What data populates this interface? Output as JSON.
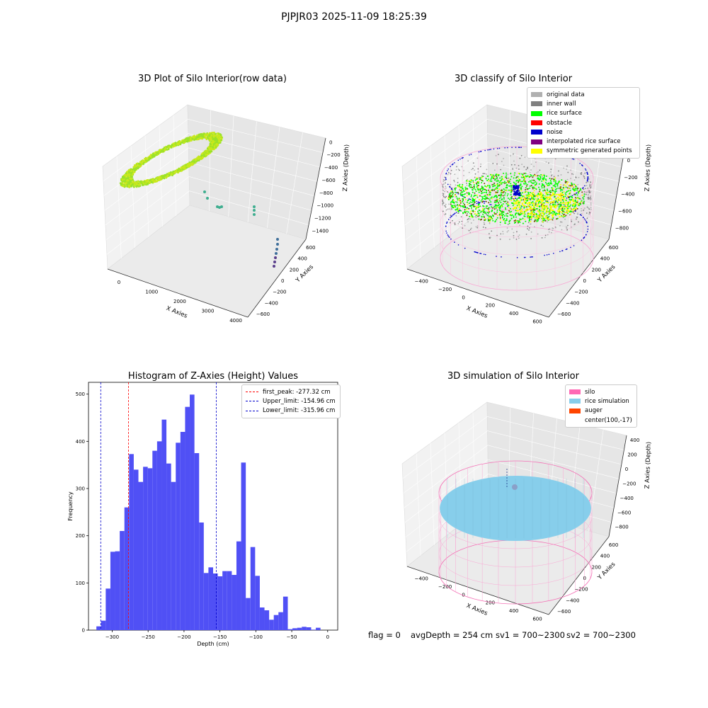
{
  "suptitle": "PJPJR03 2025-11-09 18:25:39",
  "footer": {
    "flag": "flag = 0",
    "avg": "avgDepth = 254 cm",
    "sv1": "sv1 = 700~2300",
    "sv2": "sv2 = 700~2300"
  },
  "colors": {
    "original": "#b0b0b0",
    "inner_wall": "#808080",
    "rice_surface": "#00ff00",
    "obstacle": "#ff0000",
    "noise": "#0000cc",
    "interpolated": "#800080",
    "symmetric": "#ffff00",
    "silo": "#ff69b4",
    "rice_sim": "#87ceeb",
    "auger": "#ff4500",
    "hist_bar": "#5050f5"
  },
  "chart_data": [
    {
      "type": "scatter3d",
      "title": "3D Plot of Silo Interior(row data)",
      "xlabel": "X Axies",
      "ylabel": "Y Axies",
      "zlabel": "Z Axies (Depth)",
      "x_ticks": [
        "0",
        "1000",
        "2000",
        "3000",
        "4000"
      ],
      "y_ticks": [
        "−600",
        "−400",
        "−200",
        "0",
        "200",
        "400",
        "600"
      ],
      "z_ticks": [
        "0",
        "−200",
        "−400",
        "−600",
        "−800",
        "−1000",
        "−1200",
        "−1400"
      ]
    },
    {
      "type": "scatter3d",
      "title": "3D classify of Silo Interior",
      "xlabel": "X Axies",
      "ylabel": "Y Axies",
      "zlabel": "Z Axies (Depth)",
      "x_ticks": [
        "−400",
        "−200",
        "0",
        "200",
        "400",
        "600"
      ],
      "y_ticks": [
        "−600",
        "−400",
        "−200",
        "0",
        "200",
        "400",
        "600"
      ],
      "z_ticks": [
        "200",
        "0",
        "−200",
        "−400",
        "−600",
        "−800"
      ],
      "legend": [
        {
          "label": "original data",
          "color_key": "original"
        },
        {
          "label": "inner wall",
          "color_key": "inner_wall"
        },
        {
          "label": "rice surface",
          "color_key": "rice_surface"
        },
        {
          "label": "obstacle",
          "color_key": "obstacle"
        },
        {
          "label": "noise",
          "color_key": "noise"
        },
        {
          "label": "interpolated rice surface",
          "color_key": "interpolated"
        },
        {
          "label": "symmetric generated points",
          "color_key": "symmetric"
        }
      ]
    },
    {
      "type": "histogram",
      "title": "Histogram of Z-Axies (Height) Values",
      "xlabel": "Depth (cm)",
      "ylabel": "Frequency",
      "xlim": [
        -333,
        14
      ],
      "ylim": [
        0,
        525
      ],
      "x_ticks": [
        -300,
        -250,
        -200,
        -150,
        -100,
        -50,
        0
      ],
      "y_ticks": [
        0,
        100,
        200,
        300,
        400,
        500
      ],
      "x_tick_labels": [
        "−300",
        "−250",
        "−200",
        "−150",
        "−100",
        "−50",
        "0"
      ],
      "y_tick_labels": [
        "0",
        "100",
        "200",
        "300",
        "400",
        "500"
      ],
      "bin_start": -322,
      "bin_width": 6.5,
      "counts": [
        8,
        20,
        88,
        166,
        167,
        210,
        260,
        373,
        340,
        314,
        346,
        343,
        380,
        400,
        446,
        353,
        314,
        397,
        420,
        473,
        499,
        375,
        228,
        121,
        133,
        120,
        114,
        125,
        125,
        117,
        188,
        355,
        68,
        176,
        115,
        48,
        42,
        22,
        32,
        38,
        71,
        2,
        4,
        5,
        7,
        6,
        1,
        5
      ],
      "vlines": [
        {
          "x": -277.32,
          "label": "first_peak: -277.32 cm",
          "color": "#ff0000"
        },
        {
          "x": -154.96,
          "label": "Upper_limit: -154.96 cm",
          "color": "#0000cc"
        },
        {
          "x": -315.96,
          "label": "Lower_limit: -315.96 cm",
          "color": "#0000cc"
        }
      ]
    },
    {
      "type": "surface3d",
      "title": "3D simulation of Silo Interior",
      "xlabel": "X Axies",
      "ylabel": "Y Axies",
      "zlabel": "Z Axies (Depth)",
      "x_ticks": [
        "−400",
        "−200",
        "0",
        "200",
        "400",
        "600"
      ],
      "y_ticks": [
        "−600",
        "−400",
        "−200",
        "0",
        "200",
        "400",
        "600"
      ],
      "z_ticks": [
        "400",
        "200",
        "0",
        "−200",
        "−400",
        "−600",
        "−800"
      ],
      "legend": [
        {
          "label": "silo",
          "color_key": "silo"
        },
        {
          "label": "rice simulation",
          "color_key": "rice_sim"
        },
        {
          "label": "auger",
          "color_key": "auger"
        },
        {
          "label": "center(100,-17)",
          "color_key": ""
        }
      ]
    }
  ]
}
